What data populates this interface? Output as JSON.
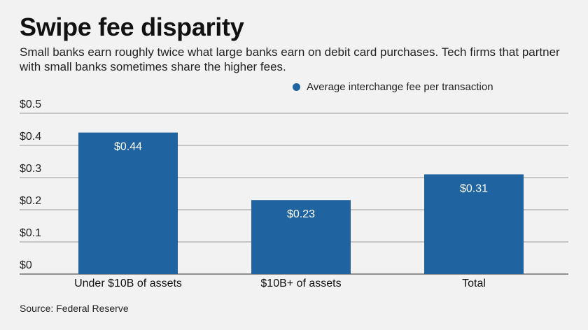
{
  "title": "Swipe fee disparity",
  "subtitle": "Small banks earn roughly twice what large banks earn on debit card purchases. Tech firms that partner with small banks sometimes share the higher fees.",
  "source": "Source: Federal Reserve",
  "colors": {
    "bar": "#1f64a0",
    "grid": "#9a9a9a",
    "background": "#f2f2f2"
  },
  "chart_data": {
    "type": "bar",
    "categories": [
      "Under $10B of assets",
      "$10B+ of assets",
      "Total"
    ],
    "series": [
      {
        "name": "Average interchange fee per transaction",
        "values": [
          0.44,
          0.23,
          0.31
        ]
      }
    ],
    "data_labels": [
      "$0.44",
      "$0.23",
      "$0.31"
    ],
    "yticks": [
      0,
      0.1,
      0.2,
      0.3,
      0.4,
      0.5
    ],
    "ytick_labels": [
      "$0",
      "$0.1",
      "$0.2",
      "$0.3",
      "$0.4",
      "$0.5"
    ],
    "ylim": [
      0,
      0.5
    ],
    "grid": true,
    "legend_position": "top-right"
  }
}
